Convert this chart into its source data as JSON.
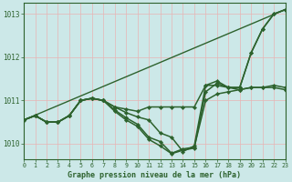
{
  "title": "Graphe pression niveau de la mer (hPa)",
  "bg_color": "#cce8e8",
  "line_color": "#2d622d",
  "grid_color": "#e8b4b4",
  "xlim": [
    0,
    23
  ],
  "ylim": [
    1009.65,
    1013.25
  ],
  "yticks": [
    1010,
    1011,
    1012,
    1013
  ],
  "xticks": [
    0,
    1,
    2,
    3,
    4,
    5,
    6,
    7,
    8,
    9,
    10,
    11,
    12,
    13,
    14,
    15,
    16,
    17,
    18,
    19,
    20,
    21,
    22,
    23
  ],
  "series": [
    {
      "x": [
        0,
        23
      ],
      "y": [
        1010.55,
        1013.1
      ],
      "has_marker": false,
      "linewidth": 1.0
    },
    {
      "x": [
        0,
        1,
        2,
        3,
        4,
        5,
        6,
        7,
        8,
        9,
        10,
        11,
        12,
        13,
        14,
        15,
        16,
        17,
        18,
        19,
        20,
        21,
        22,
        23
      ],
      "y": [
        1010.55,
        1010.65,
        1010.5,
        1010.5,
        1010.65,
        1011.0,
        1011.05,
        1011.0,
        1010.85,
        1010.8,
        1010.75,
        1010.85,
        1010.85,
        1010.85,
        1010.85,
        1010.85,
        1011.35,
        1011.35,
        1011.3,
        1011.3,
        1012.1,
        1012.65,
        1013.0,
        1013.1
      ],
      "has_marker": true,
      "linewidth": 1.1
    },
    {
      "x": [
        0,
        1,
        2,
        3,
        4,
        5,
        6,
        7,
        8,
        9,
        10,
        11,
        12,
        13,
        14,
        15,
        16,
        17,
        18,
        19,
        20,
        21,
        22,
        23
      ],
      "y": [
        1010.55,
        1010.65,
        1010.5,
        1010.5,
        1010.65,
        1011.0,
        1011.05,
        1011.0,
        1010.85,
        1010.72,
        1010.62,
        1010.55,
        1010.25,
        1010.15,
        1009.82,
        1009.95,
        1011.35,
        1011.45,
        1011.3,
        1011.3,
        1012.1,
        1012.65,
        1013.0,
        1013.1
      ],
      "has_marker": true,
      "linewidth": 1.1
    },
    {
      "x": [
        0,
        1,
        2,
        3,
        4,
        5,
        6,
        7,
        8,
        9,
        10,
        11,
        12,
        13,
        14,
        15,
        16,
        17,
        18,
        19,
        20,
        21,
        22,
        23
      ],
      "y": [
        1010.55,
        1010.65,
        1010.5,
        1010.5,
        1010.65,
        1011.0,
        1011.05,
        1011.0,
        1010.78,
        1010.6,
        1010.45,
        1010.15,
        1010.05,
        1009.78,
        1009.88,
        1009.92,
        1011.0,
        1011.15,
        1011.2,
        1011.25,
        1011.3,
        1011.3,
        1011.35,
        1011.3
      ],
      "has_marker": true,
      "linewidth": 1.1
    },
    {
      "x": [
        0,
        1,
        2,
        3,
        4,
        5,
        6,
        7,
        8,
        9,
        10,
        11,
        12,
        13,
        14,
        15,
        16,
        17,
        18,
        19,
        20,
        21,
        22,
        23
      ],
      "y": [
        1010.55,
        1010.65,
        1010.5,
        1010.5,
        1010.65,
        1011.0,
        1011.05,
        1011.0,
        1010.75,
        1010.55,
        1010.4,
        1010.1,
        1009.95,
        1009.77,
        1009.85,
        1009.9,
        1011.2,
        1011.4,
        1011.3,
        1011.25,
        1011.3,
        1011.3,
        1011.3,
        1011.25
      ],
      "has_marker": true,
      "linewidth": 1.1
    }
  ]
}
